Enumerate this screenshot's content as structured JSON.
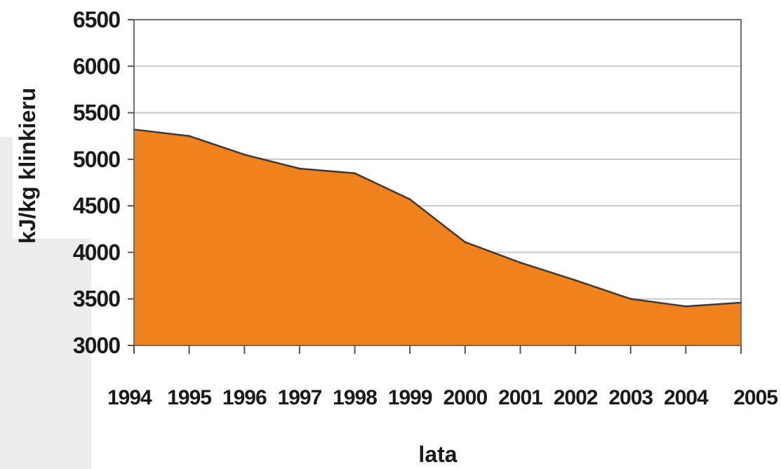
{
  "chart_data": {
    "type": "area",
    "title": "",
    "xlabel": "lata",
    "ylabel": "kJ/kg klinkieru",
    "x": [
      1994,
      1995,
      1996,
      1997,
      1998,
      1999,
      2000,
      2001,
      2002,
      2003,
      2004,
      2005
    ],
    "categories": [
      "1994",
      "1995",
      "1996",
      "1997",
      "1998",
      "1999",
      "2000",
      "2001",
      "2002",
      "2003",
      "2004",
      "2005"
    ],
    "series": [
      {
        "values": [
          5320,
          5250,
          5050,
          4900,
          4850,
          4570,
          4110,
          3890,
          3700,
          3500,
          3420,
          3460
        ]
      }
    ],
    "ylim": [
      3000,
      6500
    ],
    "yticks": [
      "3000",
      "3500",
      "4000",
      "4500",
      "5000",
      "5500",
      "6000",
      "6500"
    ],
    "grid": true,
    "colors": {
      "fill": "#f0821e",
      "line": "#3a3a3a",
      "grid": "#c8c8c8"
    }
  }
}
